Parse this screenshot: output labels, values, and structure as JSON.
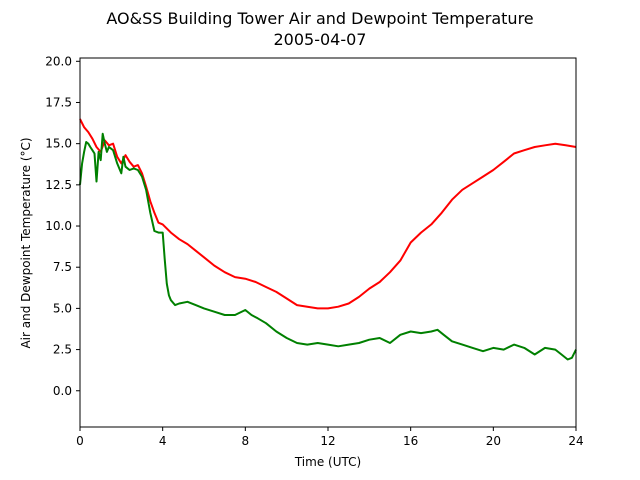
{
  "chart_data": {
    "type": "line",
    "title": "AO&SS Building Tower Air and Dewpoint Temperature",
    "subtitle": "2005-04-07",
    "xlabel": "Time (UTC)",
    "ylabel": "Air and Dewpoint Temperature (°C)",
    "xlim": [
      0,
      24
    ],
    "ylim": [
      -2.2,
      20.2
    ],
    "x_ticks": [
      0,
      4,
      8,
      12,
      16,
      20,
      24
    ],
    "y_ticks": [
      0.0,
      2.5,
      5.0,
      7.5,
      10.0,
      12.5,
      15.0,
      17.5,
      20.0
    ],
    "x_tick_labels": [
      "0",
      "4",
      "8",
      "12",
      "16",
      "20",
      "24"
    ],
    "y_tick_labels": [
      "0.0",
      "2.5",
      "5.0",
      "7.5",
      "10.0",
      "12.5",
      "15.0",
      "17.5",
      "20.0"
    ],
    "grid": false,
    "series": [
      {
        "color": "#ff0000",
        "x": [
          0,
          0.2,
          0.4,
          0.6,
          0.8,
          1.0,
          1.2,
          1.4,
          1.6,
          1.8,
          2.0,
          2.2,
          2.4,
          2.6,
          2.8,
          3.0,
          3.2,
          3.4,
          3.6,
          3.8,
          4.0,
          4.4,
          4.8,
          5.2,
          5.6,
          6.0,
          6.5,
          7.0,
          7.5,
          8.0,
          8.5,
          9.0,
          9.5,
          10.0,
          10.5,
          11.0,
          11.5,
          12.0,
          12.5,
          13.0,
          13.5,
          14.0,
          14.5,
          15.0,
          15.5,
          16.0,
          16.5,
          17.0,
          17.5,
          18.0,
          18.5,
          19.0,
          19.5,
          20.0,
          20.5,
          21.0,
          21.5,
          22.0,
          22.5,
          23.0,
          23.5,
          24.0
        ],
        "y": [
          16.5,
          16.0,
          15.7,
          15.3,
          14.8,
          14.5,
          15.2,
          14.9,
          15.0,
          14.2,
          13.8,
          14.3,
          13.9,
          13.6,
          13.7,
          13.2,
          12.4,
          11.5,
          10.8,
          10.2,
          10.1,
          9.6,
          9.2,
          8.9,
          8.5,
          8.1,
          7.6,
          7.2,
          6.9,
          6.8,
          6.6,
          6.3,
          6.0,
          5.6,
          5.2,
          5.1,
          5.0,
          5.0,
          5.1,
          5.3,
          5.7,
          6.2,
          6.6,
          7.2,
          7.9,
          9.0,
          9.6,
          10.1,
          10.8,
          11.6,
          12.2,
          12.6,
          13.0,
          13.4,
          13.9,
          14.4,
          14.6,
          14.8,
          14.9,
          15.0,
          14.9,
          14.8
        ]
      },
      {
        "color": "#008000",
        "x": [
          0,
          0.1,
          0.2,
          0.3,
          0.4,
          0.5,
          0.6,
          0.7,
          0.8,
          0.9,
          1.0,
          1.1,
          1.2,
          1.3,
          1.4,
          1.6,
          1.8,
          2.0,
          2.1,
          2.2,
          2.4,
          2.6,
          2.8,
          3.0,
          3.2,
          3.4,
          3.6,
          3.8,
          4.0,
          4.1,
          4.2,
          4.3,
          4.4,
          4.6,
          4.8,
          5.2,
          5.6,
          6.0,
          6.5,
          7.0,
          7.5,
          8.0,
          8.3,
          8.6,
          9.0,
          9.5,
          10.0,
          10.5,
          11.0,
          11.5,
          12.0,
          12.5,
          13.0,
          13.5,
          14.0,
          14.5,
          15.0,
          15.5,
          16.0,
          16.5,
          17.0,
          17.3,
          17.6,
          18.0,
          18.5,
          19.0,
          19.5,
          20.0,
          20.5,
          21.0,
          21.5,
          22.0,
          22.5,
          23.0,
          23.3,
          23.6,
          23.8,
          24.0
        ],
        "y": [
          12.5,
          13.8,
          14.5,
          15.1,
          15.0,
          14.8,
          14.6,
          14.4,
          12.7,
          14.5,
          14.0,
          15.6,
          15.0,
          14.5,
          14.8,
          14.6,
          13.8,
          13.2,
          14.2,
          13.6,
          13.4,
          13.5,
          13.4,
          13.0,
          12.2,
          10.8,
          9.7,
          9.6,
          9.6,
          8.0,
          6.5,
          5.8,
          5.5,
          5.2,
          5.3,
          5.4,
          5.2,
          5.0,
          4.8,
          4.6,
          4.6,
          4.9,
          4.6,
          4.4,
          4.1,
          3.6,
          3.2,
          2.9,
          2.8,
          2.9,
          2.8,
          2.7,
          2.8,
          2.9,
          3.1,
          3.2,
          2.9,
          3.4,
          3.6,
          3.5,
          3.6,
          3.7,
          3.4,
          3.0,
          2.8,
          2.6,
          2.4,
          2.6,
          2.5,
          2.8,
          2.6,
          2.2,
          2.6,
          2.5,
          2.2,
          1.9,
          2.0,
          2.5
        ]
      }
    ]
  }
}
